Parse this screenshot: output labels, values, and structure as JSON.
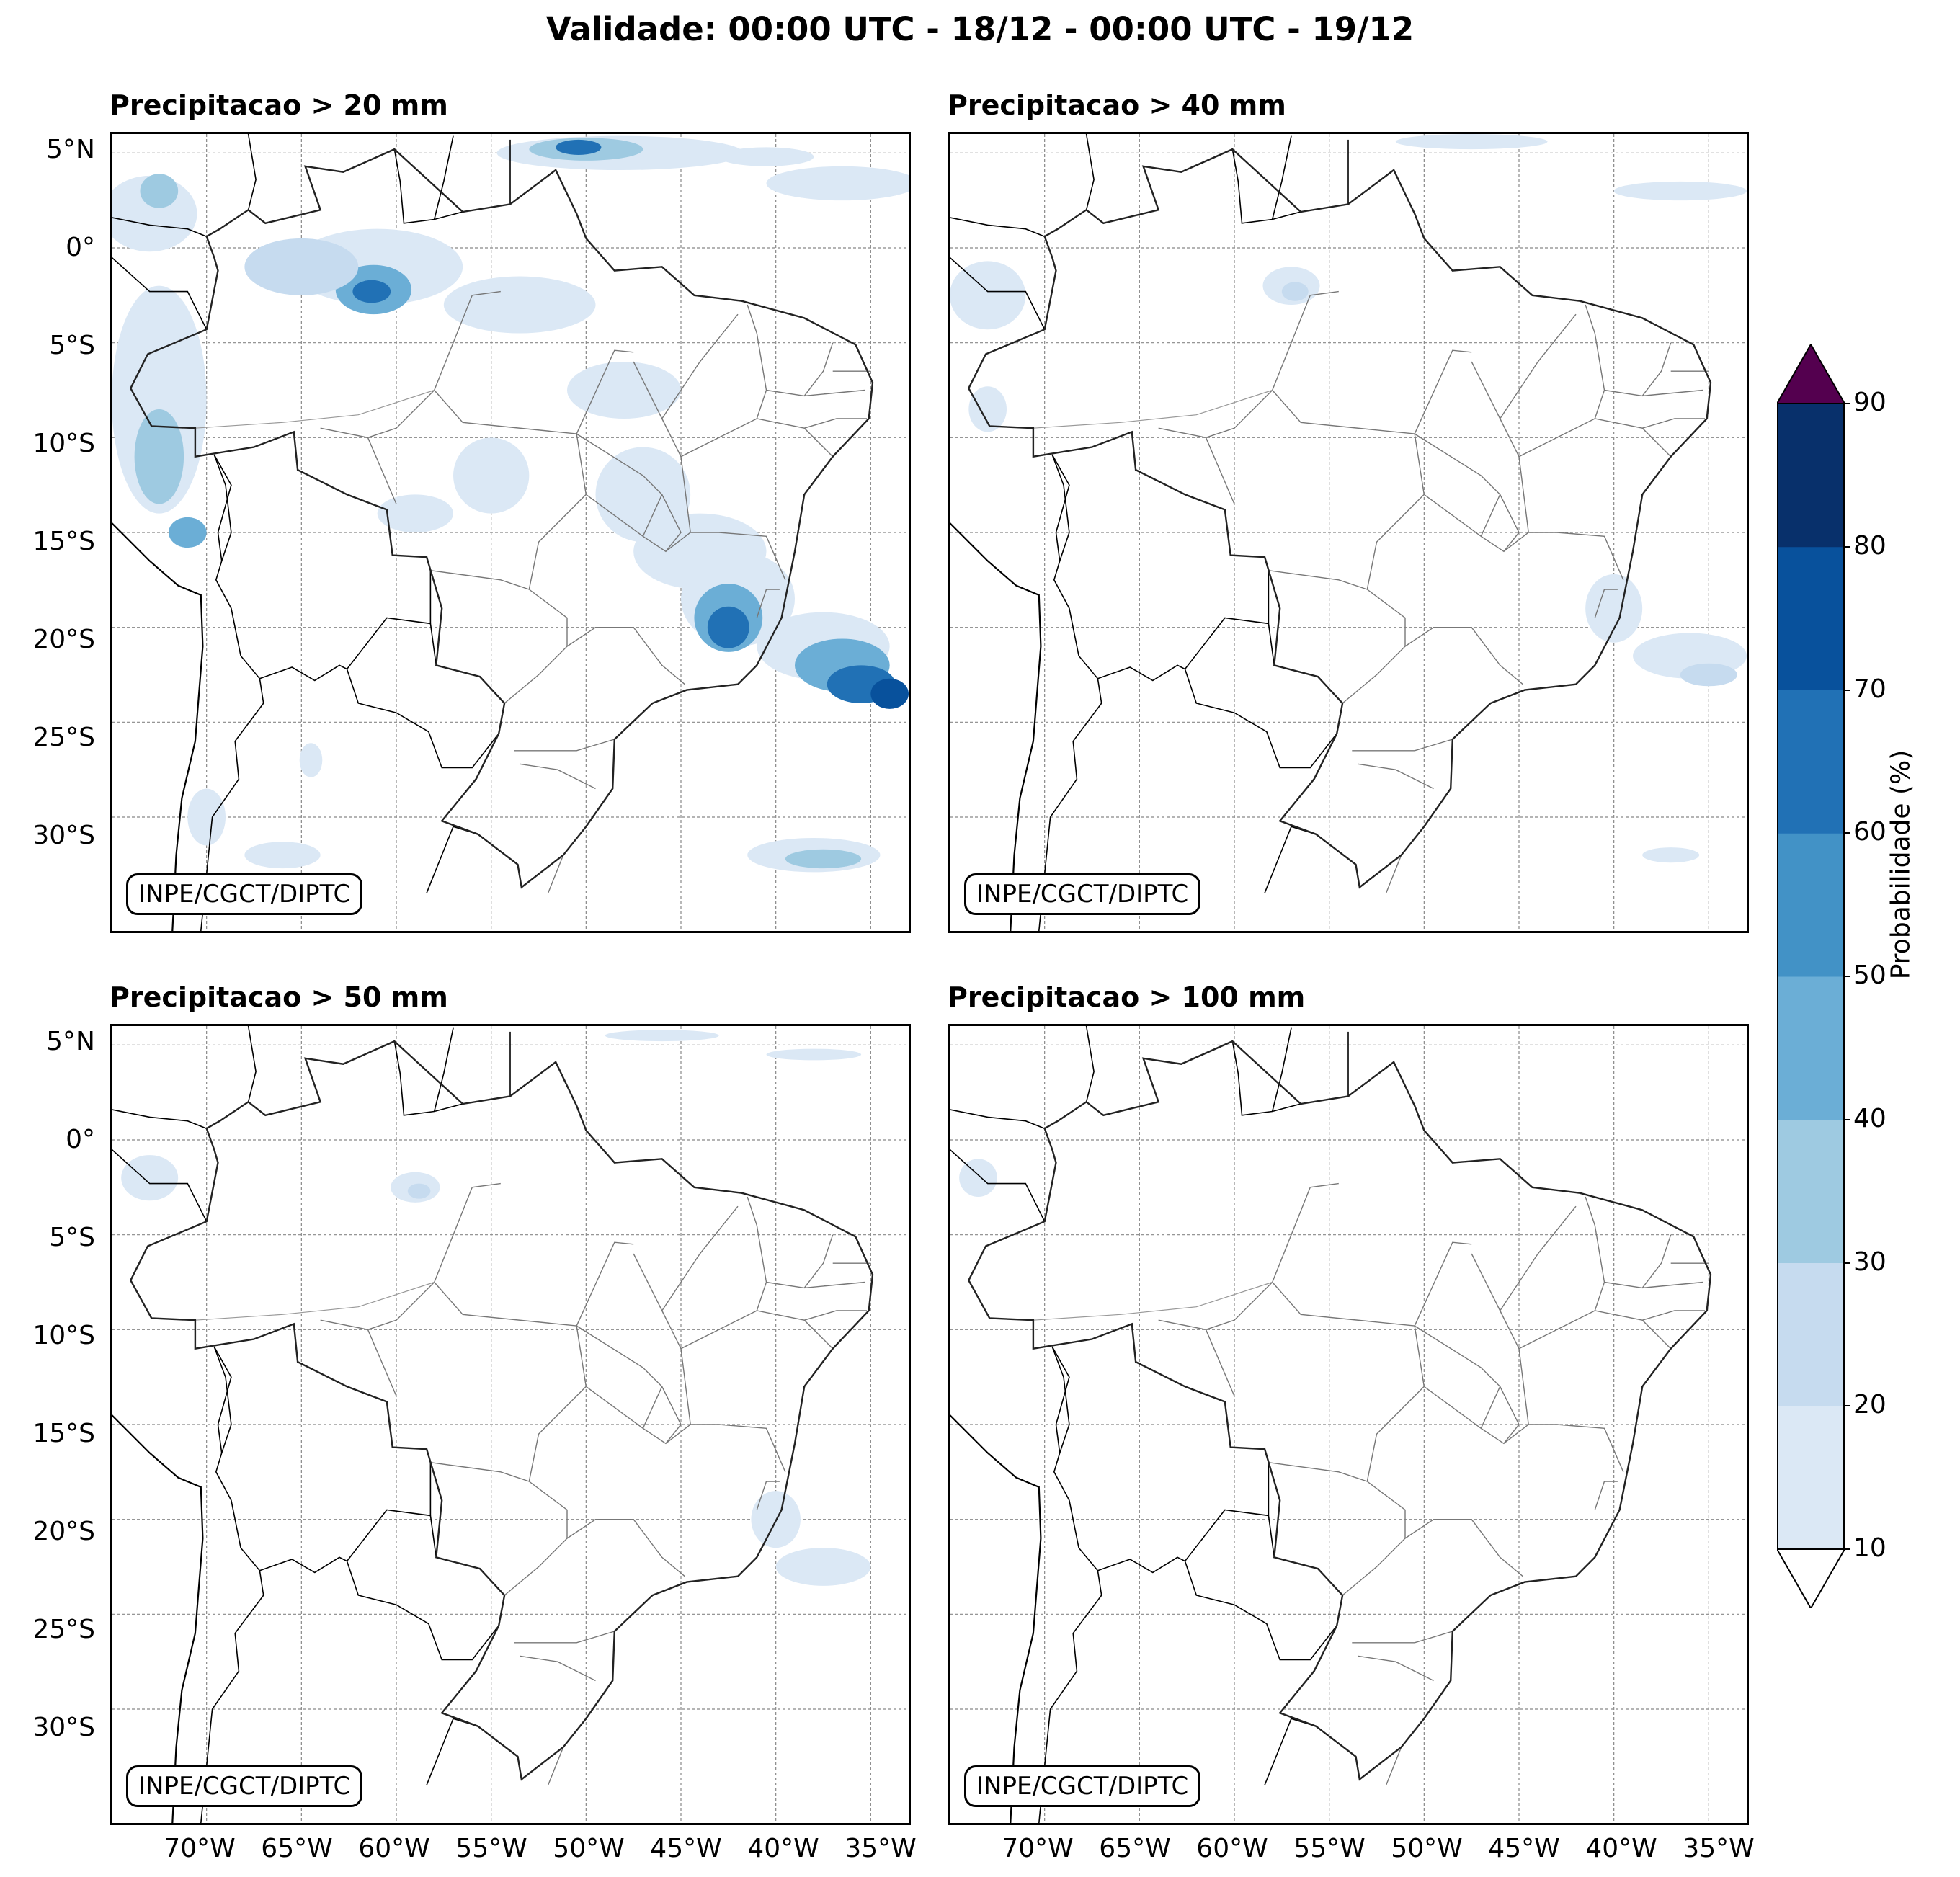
{
  "title": "Validade: 00:00 UTC - 18/12 - 00:00 UTC - 19/12",
  "credit": "INPE/CGCT/DIPTC",
  "panels": [
    {
      "title": "Precipitacao > 20 mm",
      "threshold_mm": 20,
      "intensity": "high"
    },
    {
      "title": "Precipitacao > 40 mm",
      "threshold_mm": 40,
      "intensity": "medium"
    },
    {
      "title": "Precipitacao > 50 mm",
      "threshold_mm": 50,
      "intensity": "low"
    },
    {
      "title": "Precipitacao > 100 mm",
      "threshold_mm": 100,
      "intensity": "minimal"
    }
  ],
  "lat_labels": [
    "5°N",
    "0°",
    "5°S",
    "10°S",
    "15°S",
    "20°S",
    "25°S",
    "30°S"
  ],
  "lon_labels": [
    "70°W",
    "65°W",
    "60°W",
    "55°W",
    "50°W",
    "45°W",
    "40°W",
    "35°W"
  ],
  "colorbar": {
    "label": "Probabilidade (%)",
    "ticks": [
      "10",
      "20",
      "30",
      "40",
      "50",
      "60",
      "70",
      "80",
      "90"
    ],
    "colors": [
      "#dbe8f5",
      "#c6dbef",
      "#9ecae1",
      "#6baed6",
      "#4292c6",
      "#2171b5",
      "#08519c",
      "#08306b"
    ],
    "over_color": "#54004f",
    "under_color": "#ffffff"
  }
}
